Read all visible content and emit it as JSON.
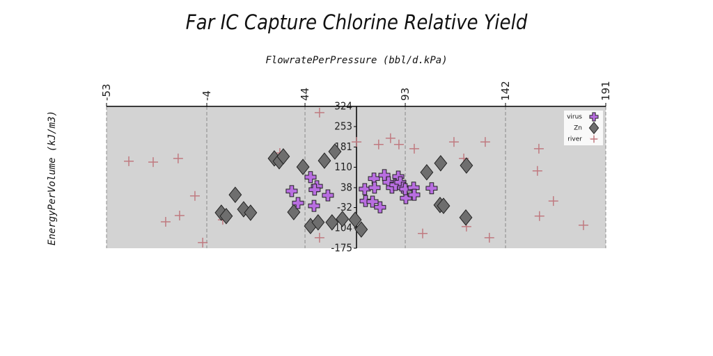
{
  "chart_data": {
    "type": "scatter",
    "title": "Far IC Capture Chlorine Relative Yield",
    "xlabel": "FlowratePerPressure (bbl/d.kPa)",
    "ylabel": "EnergyPerVolume (kJ/m3)",
    "xlim": [
      -53,
      191
    ],
    "xticks": [
      -53,
      -4,
      44,
      93,
      142,
      191
    ],
    "ylim": [
      -175,
      324
    ],
    "yticks": [
      324,
      253,
      181,
      110,
      38,
      -32,
      -104,
      -175
    ],
    "grid": true,
    "legend": "upper right",
    "background": "#d3d3d3",
    "series": [
      {
        "name": "virus",
        "color": "#b86ee0",
        "marker": "plus",
        "x": [
          37.5,
          40.6,
          48.4,
          46.7,
          49.8,
          48.7,
          55.2,
          73.2,
          73.6,
          77.7,
          77.0,
          78.0,
          80.7,
          82.8,
          84.8,
          86.5,
          88.2,
          89.6,
          90.6,
          92.0,
          93.3,
          93.0,
          97.1,
          97.4,
          105.9
        ],
        "values": [
          26,
          -16,
          -26,
          75,
          43,
          31,
          11,
          33,
          -9,
          70,
          -11,
          38,
          -31,
          82,
          57,
          38,
          48,
          77,
          57,
          38,
          1,
          33,
          38,
          13,
          36
        ]
      },
      {
        "name": "Zn",
        "color": "#6e6e6e",
        "marker": "diamond",
        "x": [
          3.1,
          5.5,
          9.9,
          14.0,
          17.4,
          29.0,
          31.4,
          33.4,
          38.5,
          43.0,
          46.7,
          50.4,
          53.5,
          57.2,
          58.6,
          62.3,
          68.5,
          71.5,
          103.5,
          110.0,
          111.7,
          110.3,
          122.6,
          122.9
        ],
        "values": [
          -50,
          -62,
          13,
          -38,
          -50,
          141,
          131,
          148,
          -48,
          111,
          -97,
          -84,
          133,
          -84,
          165,
          -72,
          -75,
          -109,
          92,
          -23,
          -26,
          124,
          -67,
          116
        ]
      },
      {
        "name": "river",
        "color": "#c07a80",
        "marker": "thin-plus",
        "x": [
          -42.1,
          -30.2,
          -18.0,
          -9.8,
          -24.1,
          -17.3,
          -6.0,
          3.8,
          31.7,
          51.1,
          51.1,
          69.2,
          80.0,
          85.8,
          89.9,
          97.4,
          101.5,
          116.8,
          121.6,
          122.9,
          132.1,
          134.1,
          158.3,
          157.6,
          165.4,
          158.6,
          180.1,
          185.2
        ],
        "values": [
          131,
          128,
          141,
          9,
          -82,
          -60,
          -155,
          -75,
          160,
          302,
          -138,
          199,
          190,
          212,
          190,
          175,
          -123,
          199,
          141,
          -99,
          199,
          -138,
          175,
          97,
          -9,
          -62,
          -94,
          212
        ]
      }
    ]
  }
}
